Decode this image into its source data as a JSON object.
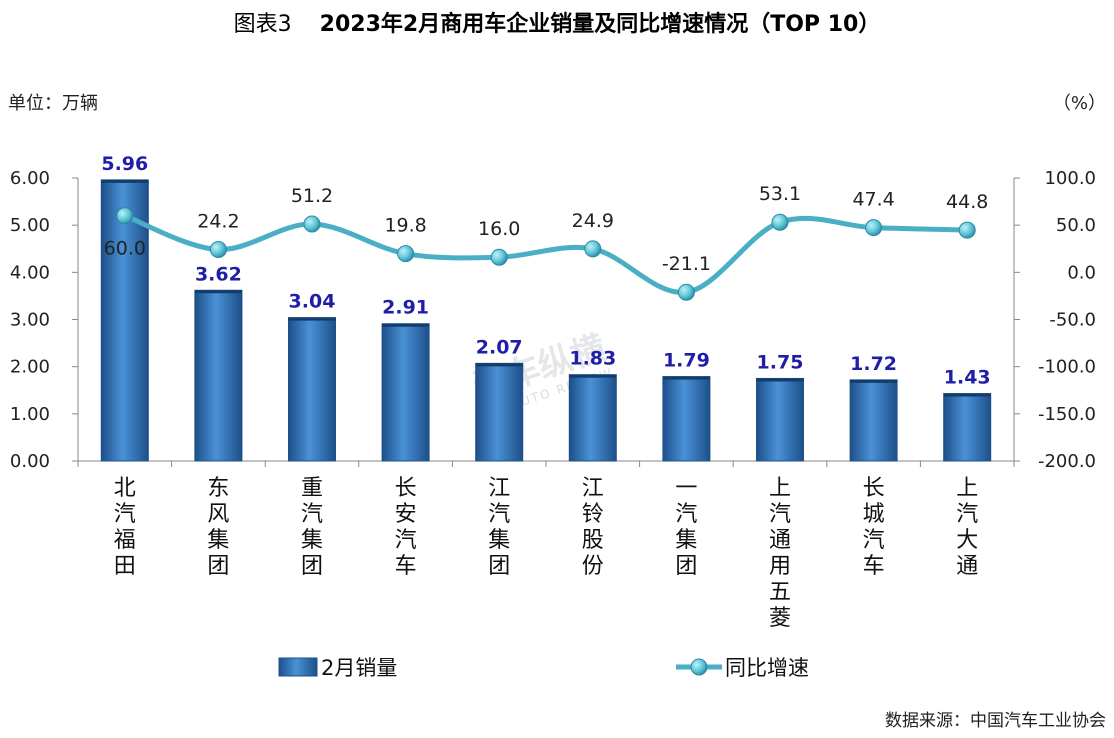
{
  "figure_label": "图表3",
  "source": "数据来源：中国汽车工业协会",
  "watermark": {
    "text": "汽车纵横",
    "subtext": "AUTO REVIEW"
  },
  "colors": {
    "bar": "#3a7fc4",
    "bar_dark": "#1d4f8a",
    "line": "#4aaec4",
    "marker": "#5cc4d8",
    "bar_label": "#1e1ea8"
  },
  "chart_data": {
    "type": "bar",
    "title": "2023年2月商用车企业销量及同比增速情况（TOP 10）",
    "left_unit": "单位：万辆",
    "right_unit": "（%）",
    "categories": [
      "北汽福田",
      "东风集团",
      "重汽集团",
      "长安汽车",
      "江汽集团",
      "江铃股份",
      "一汽集团",
      "上汽通用五菱",
      "长城汽车",
      "上汽大通"
    ],
    "series": [
      {
        "name": "2月销量",
        "type": "bar",
        "axis": "left",
        "values": [
          5.96,
          3.62,
          3.04,
          2.91,
          2.07,
          1.83,
          1.79,
          1.75,
          1.72,
          1.43
        ]
      },
      {
        "name": "同比增速",
        "type": "line",
        "axis": "right",
        "values": [
          60.0,
          24.2,
          51.2,
          19.8,
          16.0,
          24.9,
          -21.1,
          53.1,
          47.4,
          44.8
        ]
      }
    ],
    "left_axis": {
      "min": 0,
      "max": 6,
      "ticks": [
        "0.00",
        "1.00",
        "2.00",
        "3.00",
        "4.00",
        "5.00",
        "6.00"
      ]
    },
    "right_axis": {
      "min": -200,
      "max": 100,
      "ticks": [
        "-200.0",
        "-150.0",
        "-100.0",
        "-50.0",
        "0.0",
        "50.0",
        "100.0"
      ]
    },
    "bar_labels": [
      "5.96",
      "3.62",
      "3.04",
      "2.91",
      "2.07",
      "1.83",
      "1.79",
      "1.75",
      "1.72",
      "1.43"
    ],
    "line_labels": [
      "60.0",
      "24.2",
      "51.2",
      "19.8",
      "16.0",
      "24.9",
      "-21.1",
      "53.1",
      "47.4",
      "44.8"
    ],
    "legend": [
      "2月销量",
      "同比增速"
    ],
    "grid": false,
    "legend_position": "bottom"
  }
}
